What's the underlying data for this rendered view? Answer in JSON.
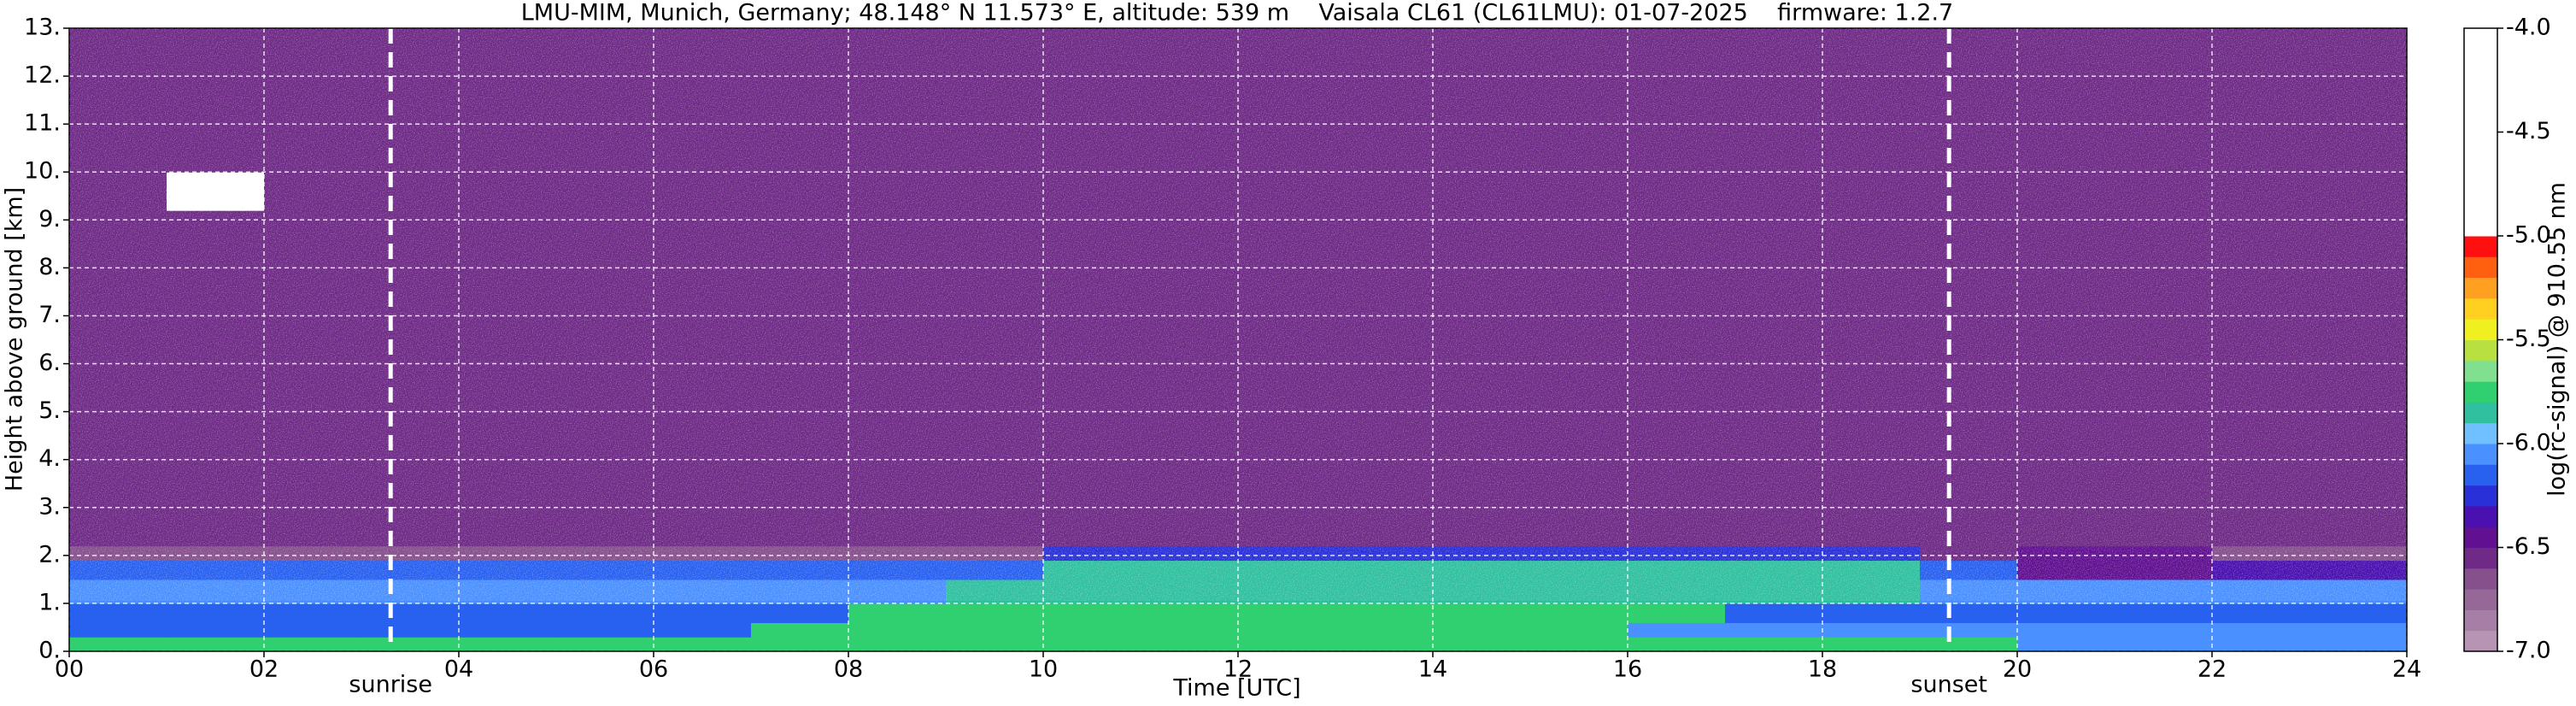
{
  "chart_data": {
    "type": "heatmap",
    "title": "LMU-MIM, Munich, Germany; 48.148° N 11.573° E, altitude: 539 m    Vaisala CL61 (CL61LMU): 01-07-2025    firmware: 1.2.7",
    "xlabel": "Time [UTC]",
    "ylabel": "Height above ground [km]",
    "xlim": [
      0,
      24
    ],
    "ylim": [
      0,
      13
    ],
    "xticks": [
      {
        "value": 0,
        "label": "00"
      },
      {
        "value": 2,
        "label": "02"
      },
      {
        "value": 4,
        "label": "04"
      },
      {
        "value": 6,
        "label": "06"
      },
      {
        "value": 8,
        "label": "08"
      },
      {
        "value": 10,
        "label": "10"
      },
      {
        "value": 12,
        "label": "12"
      },
      {
        "value": 14,
        "label": "14"
      },
      {
        "value": 16,
        "label": "16"
      },
      {
        "value": 18,
        "label": "18"
      },
      {
        "value": 20,
        "label": "20"
      },
      {
        "value": 22,
        "label": "22"
      },
      {
        "value": 24,
        "label": "24"
      }
    ],
    "yticks": [
      {
        "value": 0,
        "label": "0."
      },
      {
        "value": 1,
        "label": "1."
      },
      {
        "value": 2,
        "label": "2."
      },
      {
        "value": 3,
        "label": "3."
      },
      {
        "value": 4,
        "label": "4."
      },
      {
        "value": 5,
        "label": "5."
      },
      {
        "value": 6,
        "label": "6."
      },
      {
        "value": 7,
        "label": "7."
      },
      {
        "value": 8,
        "label": "8."
      },
      {
        "value": 9,
        "label": "9."
      },
      {
        "value": 10,
        "label": "10."
      },
      {
        "value": 11,
        "label": "11."
      },
      {
        "value": 12,
        "label": "12."
      },
      {
        "value": 13,
        "label": "13."
      }
    ],
    "grid": true,
    "annotations": [
      {
        "label": "sunrise",
        "x": 3.3
      },
      {
        "label": "sunset",
        "x": 19.3
      }
    ],
    "x_edges": [
      0,
      1,
      2,
      3,
      4,
      5,
      6,
      7,
      8,
      9,
      10,
      11,
      12,
      13,
      14,
      15,
      16,
      17,
      18,
      19,
      20,
      21,
      22,
      23,
      24
    ],
    "y_edges": [
      0,
      0.3,
      0.6,
      1,
      1.5,
      1.9,
      2.2,
      9.2,
      10,
      13
    ],
    "z": [
      [
        -5.8,
        -5.8,
        -5.8,
        -5.8,
        -5.8,
        -5.8,
        -5.8,
        -5.8,
        -5.8,
        -5.8,
        -5.8,
        -5.8,
        -5.8,
        -5.8,
        -5.8,
        -5.8,
        -5.8,
        -5.8,
        -5.8,
        -5.8,
        -6.1,
        -6.1,
        -6.1,
        -6.1
      ],
      [
        -6.2,
        -6.2,
        -6.2,
        -6.2,
        -6.2,
        -6.2,
        -6.2,
        -5.8,
        -5.8,
        -5.8,
        -5.8,
        -5.8,
        -5.8,
        -5.8,
        -5.8,
        -5.8,
        -6.1,
        -6.1,
        -6.1,
        -6.1,
        -6.1,
        -6.1,
        -6.1,
        -6.1
      ],
      [
        -6.15,
        -6.15,
        -6.15,
        -6.15,
        -6.15,
        -6.15,
        -6.15,
        -6.15,
        -5.8,
        -5.8,
        -5.8,
        -5.8,
        -5.8,
        -5.8,
        -5.8,
        -5.8,
        -5.8,
        -6.15,
        -6.15,
        -6.15,
        -6.15,
        -6.15,
        -6.15,
        -6.15
      ],
      [
        -6.1,
        -6.1,
        -6.1,
        -6.1,
        -6.1,
        -6.1,
        -6.1,
        -6.1,
        -6.1,
        -5.85,
        -5.85,
        -5.85,
        -5.85,
        -5.85,
        -5.85,
        -5.85,
        -5.85,
        -5.85,
        -5.85,
        -6.1,
        -6.1,
        -6.1,
        -6.1,
        -6.1
      ],
      [
        -6.2,
        -6.2,
        -6.2,
        -6.2,
        -6.2,
        -6.2,
        -6.2,
        -6.2,
        -6.2,
        -6.2,
        -5.85,
        -5.85,
        -5.85,
        -5.85,
        -5.85,
        -5.85,
        -5.85,
        -5.85,
        -5.85,
        -6.2,
        -6.45,
        -6.45,
        -6.4,
        -6.4
      ],
      [
        -6.7,
        -6.7,
        -6.7,
        -6.7,
        -6.7,
        -6.7,
        -6.7,
        -6.7,
        -6.7,
        -6.7,
        -6.3,
        -6.3,
        -6.3,
        -6.3,
        -6.3,
        -6.3,
        -6.3,
        -6.3,
        -6.3,
        -6.6,
        -6.5,
        -6.5,
        -6.7,
        -6.7
      ],
      [
        -6.6,
        -6.6,
        -6.6,
        -6.6,
        -6.6,
        -6.6,
        -6.6,
        -6.6,
        -6.6,
        -6.6,
        -6.6,
        -6.6,
        -6.6,
        -6.6,
        -6.6,
        -6.6,
        -6.6,
        -6.6,
        -6.6,
        -6.6,
        -6.6,
        -6.6,
        -6.6,
        -6.6
      ],
      [
        -6.6,
        -4.5,
        -6.6,
        -6.6,
        -6.6,
        -6.6,
        -6.6,
        -6.6,
        -6.6,
        -6.6,
        -6.6,
        -6.6,
        -6.6,
        -6.6,
        -6.6,
        -6.6,
        -6.6,
        -6.6,
        -6.6,
        -6.6,
        -6.6,
        -6.6,
        -6.6,
        -6.6
      ],
      [
        -6.6,
        -6.6,
        -6.6,
        -6.6,
        -6.6,
        -6.6,
        -6.6,
        -6.6,
        -6.6,
        -6.6,
        -6.6,
        -6.6,
        -6.6,
        -6.6,
        -6.6,
        -6.6,
        -6.6,
        -6.6,
        -6.6,
        -6.6,
        -6.6,
        -6.6,
        -6.6,
        -6.6
      ]
    ],
    "colorbar": {
      "label": "log(rc-signal) @ 910.55 nm",
      "lim": [
        -7,
        -4
      ],
      "ticks": [
        {
          "value": -4,
          "label": "-4.0"
        },
        {
          "value": -4.5,
          "label": "-4.5"
        },
        {
          "value": -5,
          "label": "-5.0"
        },
        {
          "value": -5.5,
          "label": "-5.5"
        },
        {
          "value": -6,
          "label": "-6.0"
        },
        {
          "value": -6.5,
          "label": "-6.5"
        },
        {
          "value": -7,
          "label": "-7.0"
        }
      ],
      "levels": [
        -7,
        -6.9,
        -6.8,
        -6.7,
        -6.6,
        -6.5,
        -6.4,
        -6.3,
        -6.2,
        -6.1,
        -6,
        -5.9,
        -5.8,
        -5.7,
        -5.6,
        -5.5,
        -5.4,
        -5.3,
        -5.2,
        -5.1,
        -5,
        -4
      ],
      "colors": [
        "#b894b4",
        "#a67ea6",
        "#966898",
        "#85508c",
        "#6e2a86",
        "#601090",
        "#4a10b0",
        "#2a30d8",
        "#2860f0",
        "#4a90ff",
        "#70c0ff",
        "#30c0a0",
        "#30d070",
        "#80e090",
        "#b8e040",
        "#f0f020",
        "#ffd020",
        "#ffa020",
        "#ff6010",
        "#ff1010",
        "#ffffff"
      ]
    }
  }
}
